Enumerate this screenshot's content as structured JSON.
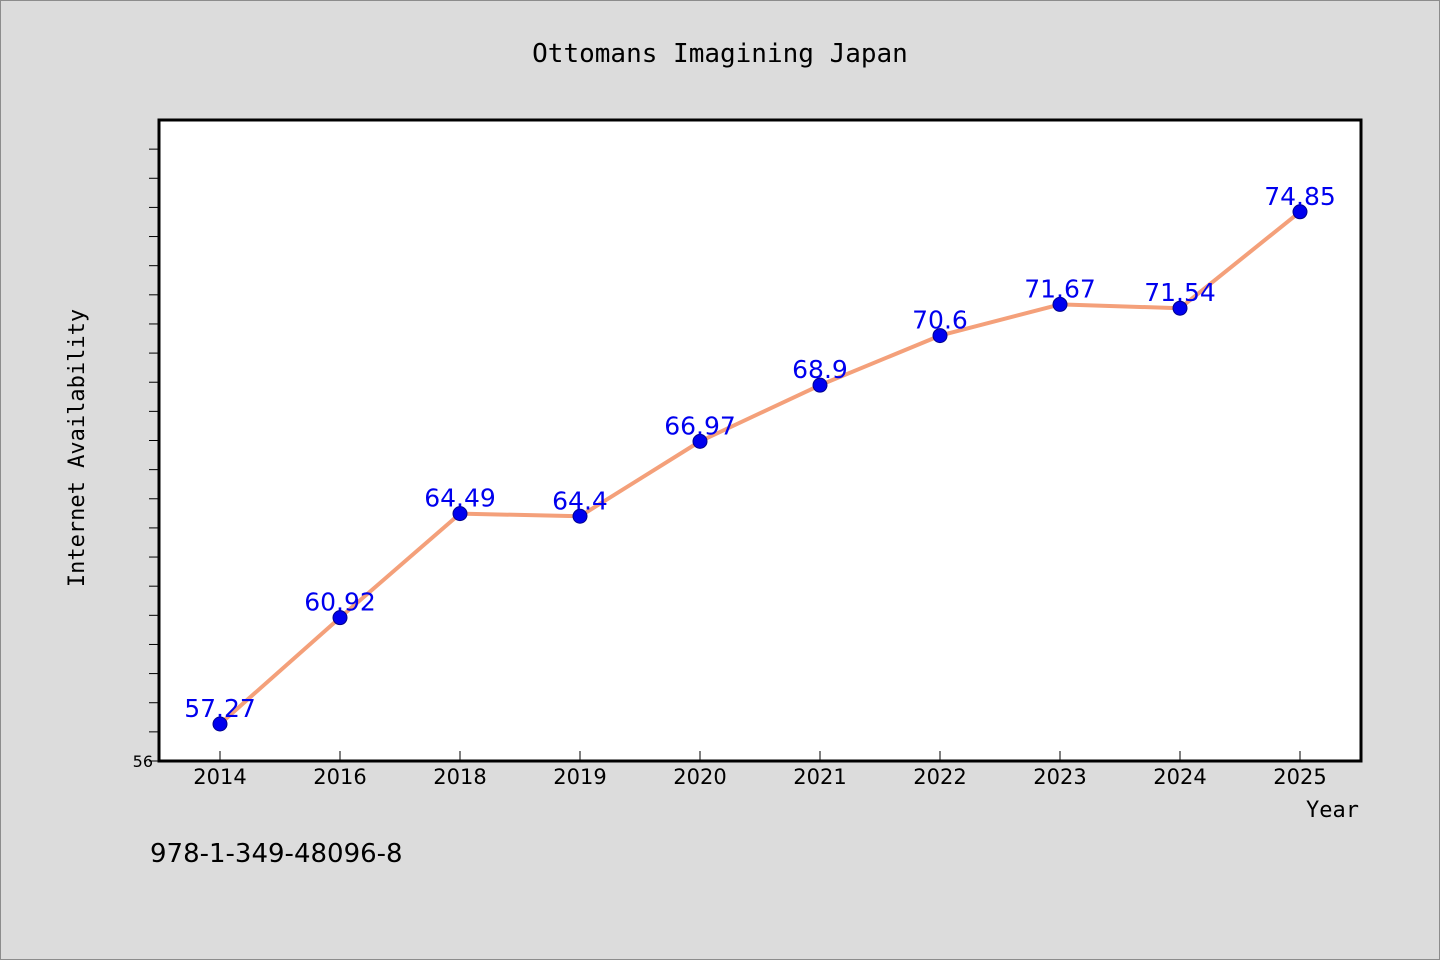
{
  "chart_data": {
    "type": "line",
    "title": "Ottomans Imagining Japan",
    "xlabel": "Year",
    "ylabel": "Internet Availability",
    "categories": [
      "2014",
      "2016",
      "2018",
      "2019",
      "2020",
      "2021",
      "2022",
      "2023",
      "2024",
      "2025"
    ],
    "series": [
      {
        "values": [
          57.27,
          60.92,
          64.49,
          64.4,
          66.97,
          68.9,
          70.6,
          71.67,
          71.54,
          74.85
        ],
        "labels": [
          "57.27",
          "60.92",
          "64.49",
          "64.4",
          "66.97",
          "68.9",
          "70.6",
          "71.67",
          "71.54",
          "74.85"
        ]
      }
    ],
    "ylim": [
      56,
      78
    ],
    "yticks_labeled": [
      "56"
    ],
    "grid": false,
    "line_color": "#f4a07a",
    "marker_color": "#0000ee",
    "label_color": "#0000ee"
  },
  "footnote": "978-1-349-48096-8"
}
